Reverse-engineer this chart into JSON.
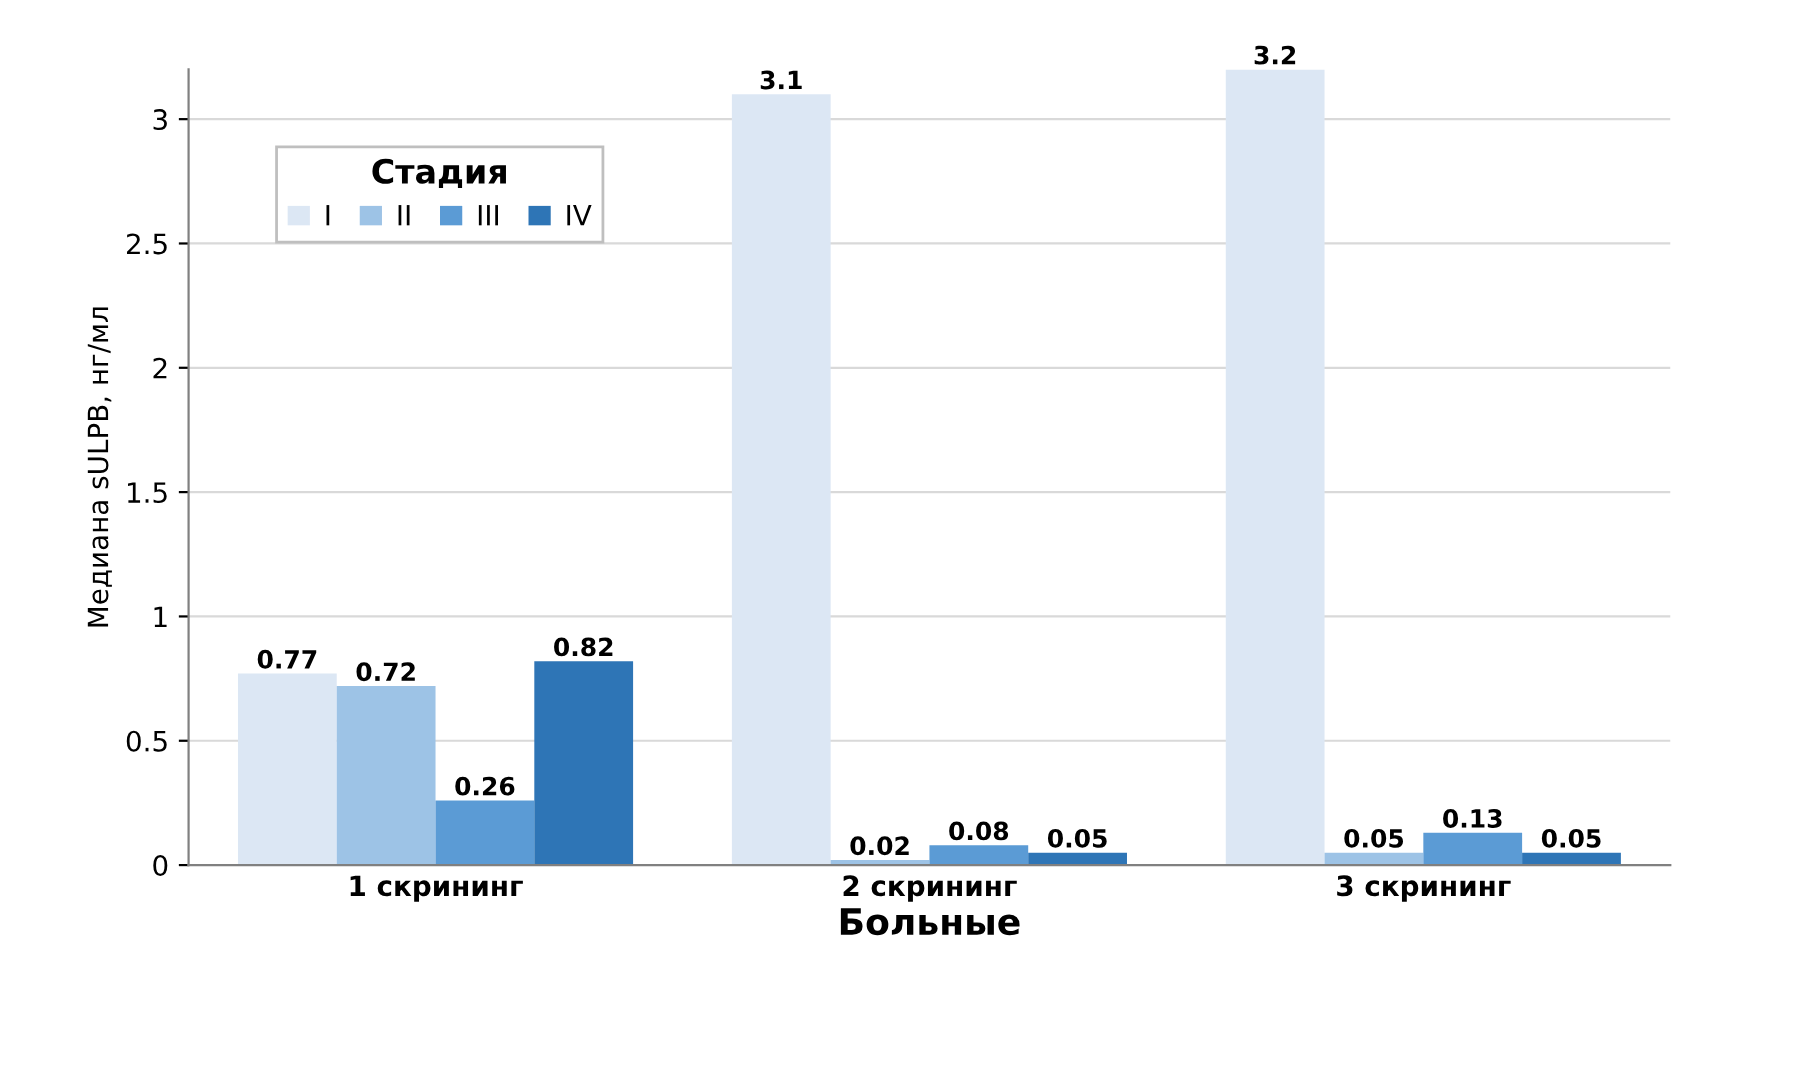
{
  "chart_data": {
    "type": "bar",
    "xlabel": "Больные",
    "ylabel": "Медиана sULPB, нг/мл",
    "legend_title": "Стадия",
    "categories": [
      "1 скрининг",
      "2 скрининг",
      "3 скрининг"
    ],
    "series": [
      {
        "name": "I",
        "color": "#dce7f4",
        "values": [
          0.77,
          3.1,
          3.2
        ]
      },
      {
        "name": "II",
        "color": "#9dc3e6",
        "values": [
          0.72,
          0.02,
          0.05
        ]
      },
      {
        "name": "III",
        "color": "#5b9bd5",
        "values": [
          0.26,
          0.08,
          0.13
        ]
      },
      {
        "name": "IV",
        "color": "#2e75b6",
        "values": [
          0.82,
          0.05,
          0.05
        ]
      }
    ],
    "ylim": [
      0,
      3.2
    ],
    "yticks": [
      0,
      0.5,
      1,
      1.5,
      2,
      2.5,
      3
    ],
    "grid": "y",
    "legend": "top left",
    "data_labels": true
  }
}
